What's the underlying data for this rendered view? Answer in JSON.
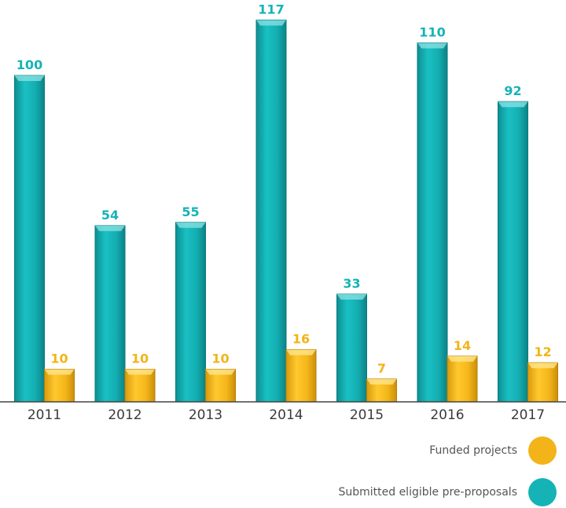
{
  "colors": {
    "submitted": "#16b3b6",
    "funded": "#f2b418",
    "axis": "#444444"
  },
  "legend": {
    "funded_label": "Funded projects",
    "submitted_label": "Submitted eligible pre-proposals"
  },
  "chart_data": {
    "type": "bar",
    "categories": [
      "2011",
      "2012",
      "2013",
      "2014",
      "2015",
      "2016",
      "2017"
    ],
    "series": [
      {
        "name": "Submitted eligible pre-proposals",
        "values": [
          100,
          54,
          55,
          117,
          33,
          110,
          92
        ]
      },
      {
        "name": "Funded projects",
        "values": [
          10,
          10,
          10,
          16,
          7,
          14,
          12
        ]
      }
    ],
    "title": "",
    "xlabel": "",
    "ylabel": "",
    "ylim": [
      0,
      120
    ],
    "grid": false,
    "legend_position": "bottom-right"
  }
}
